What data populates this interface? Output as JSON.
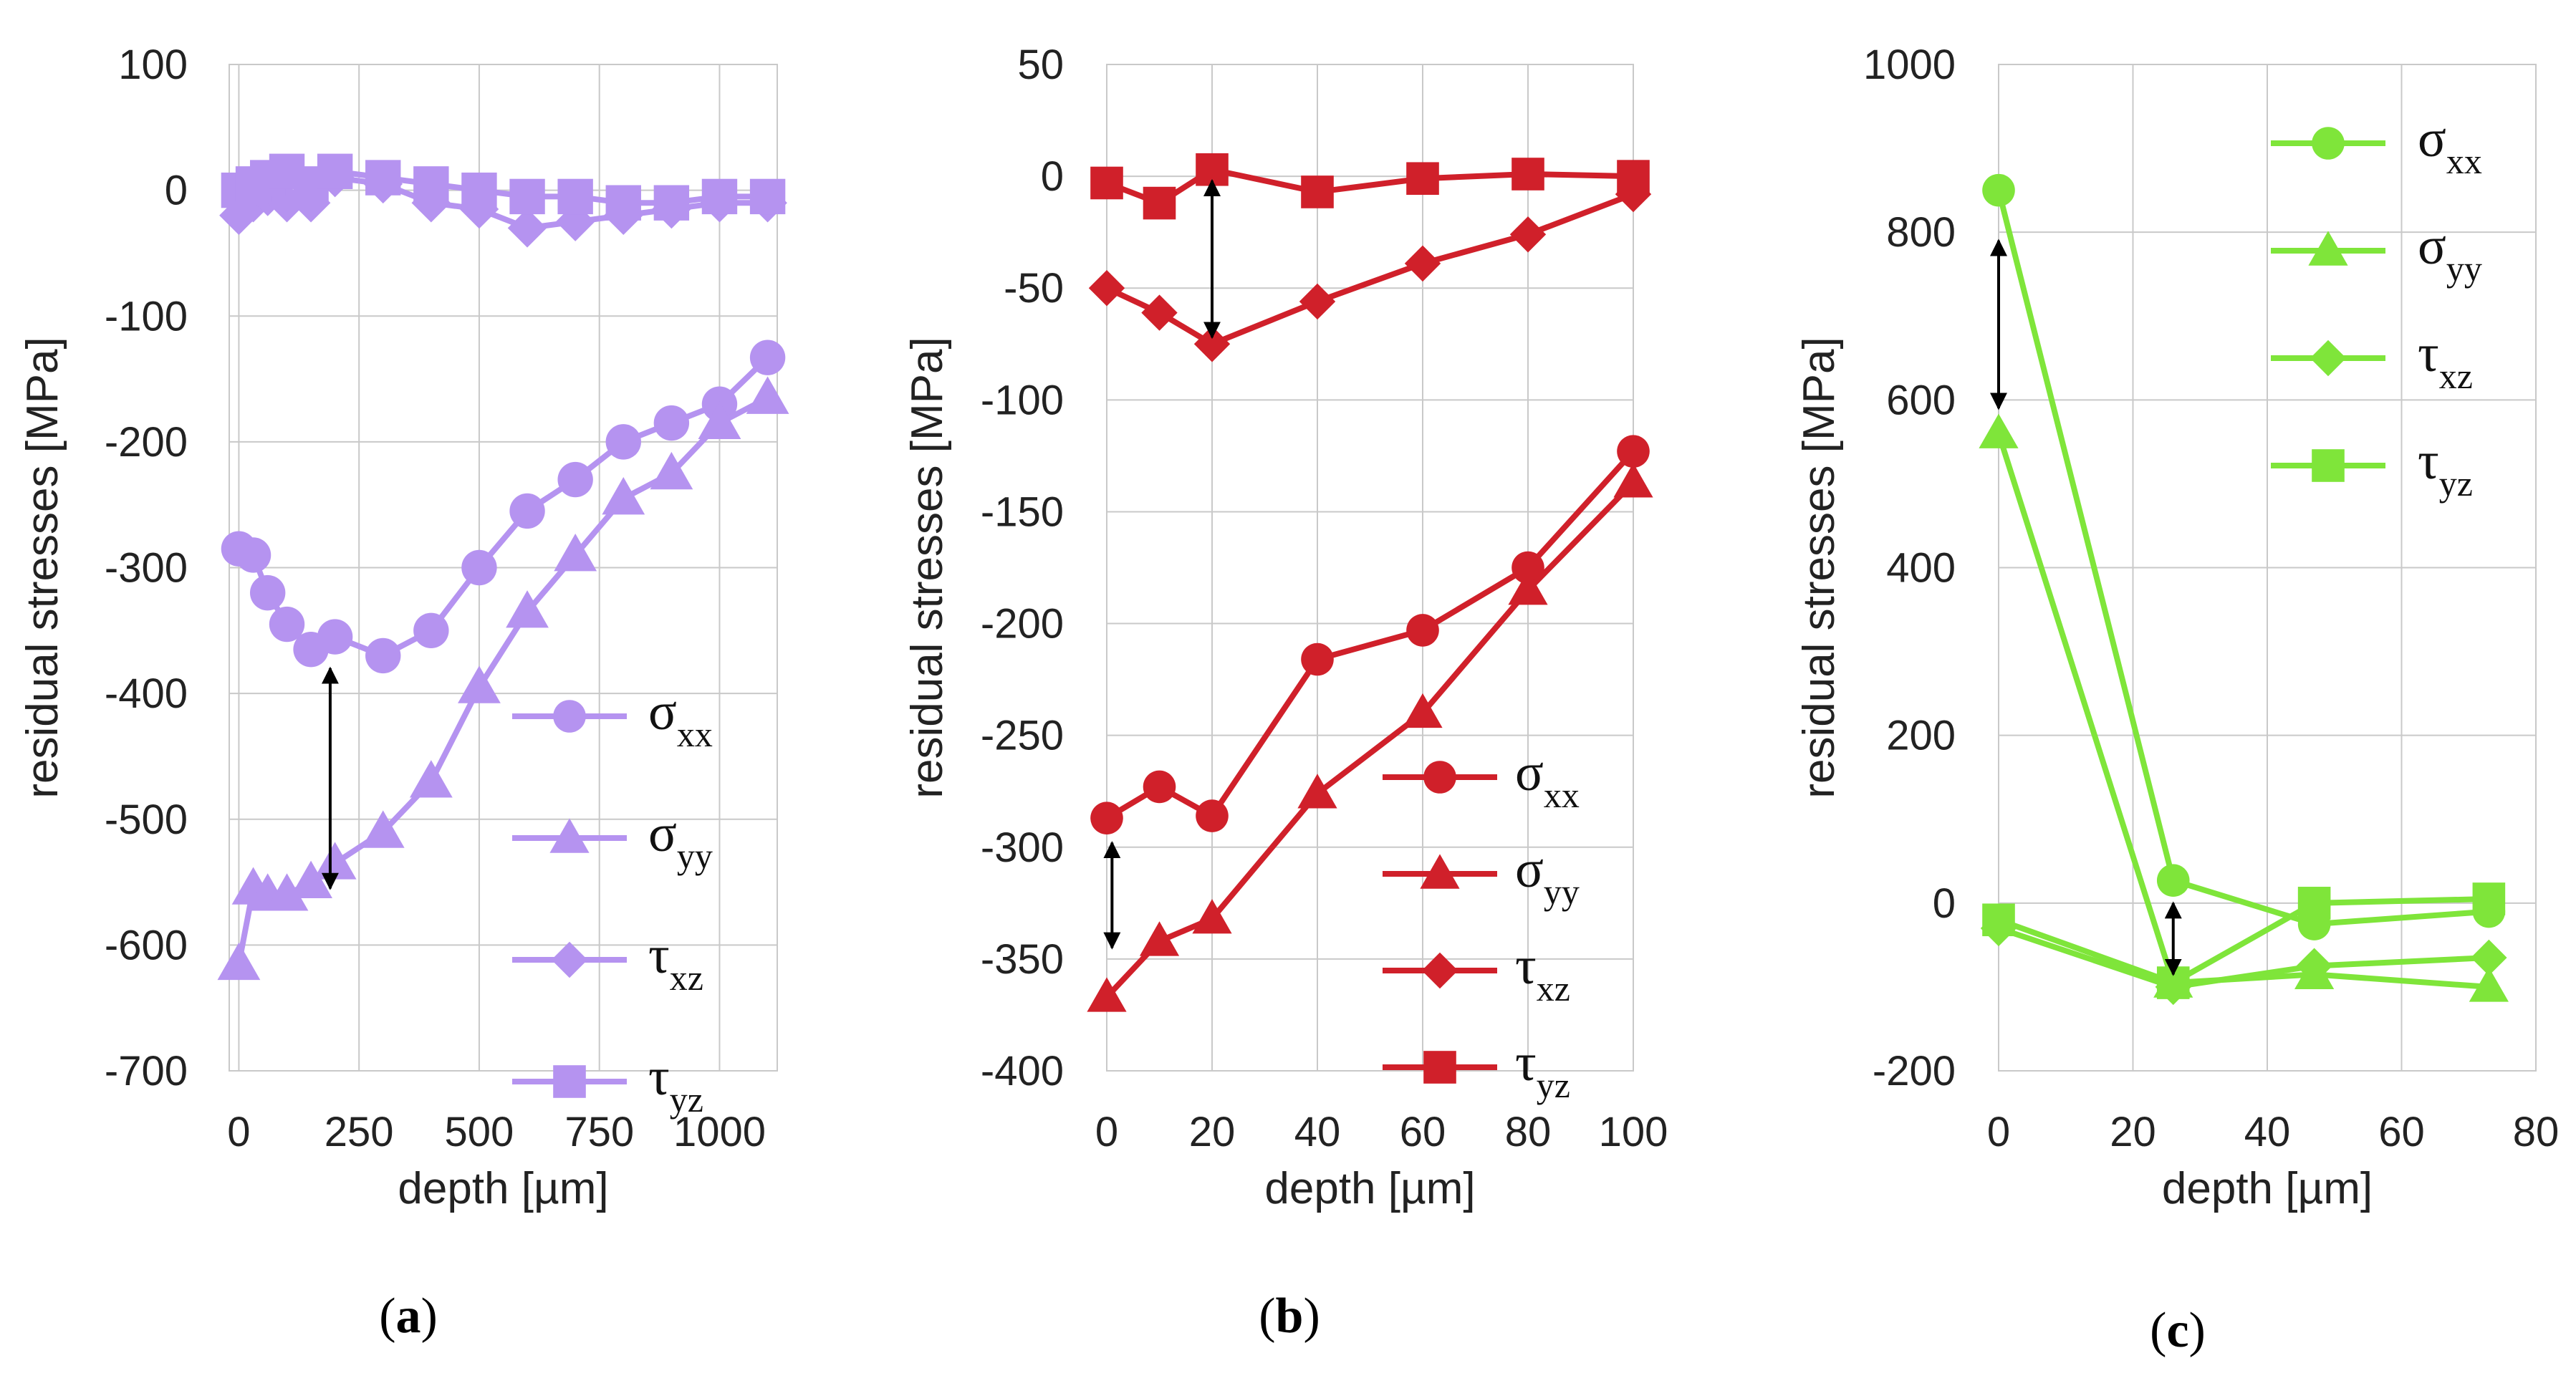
{
  "chart_data": [
    {
      "type": "line",
      "panel": "a",
      "caption_open": "(",
      "caption_letter": "a",
      "caption_close": ")",
      "color": "#B593F0",
      "xlabel": "depth [µm]",
      "ylabel": "residual stresses [MPa]",
      "xlim": [
        -20,
        1120
      ],
      "ylim": [
        -700,
        100
      ],
      "xticks": [
        0,
        250,
        500,
        750,
        1000
      ],
      "xtick_labels": [
        "0",
        "250",
        "500",
        "750",
        "1000"
      ],
      "yticks": [
        100,
        0,
        -100,
        -200,
        -300,
        -400,
        -500,
        -600,
        -700
      ],
      "ytick_labels": [
        "100",
        "0",
        "-100",
        "-200",
        "-300",
        "-400",
        "-500",
        "-600",
        "-700"
      ],
      "legend_position": "bottom-right",
      "arrow": {
        "x": 190,
        "y1": -380,
        "y2": -555
      },
      "series": [
        {
          "name": "σ",
          "sub": "xx",
          "marker": "circle",
          "x": [
            0,
            30,
            60,
            100,
            150,
            200,
            300,
            400,
            500,
            600,
            700,
            800,
            900,
            1000,
            1100
          ],
          "values": [
            -285,
            -290,
            -320,
            -345,
            -365,
            -355,
            -370,
            -350,
            -300,
            -255,
            -230,
            -200,
            -185,
            -170,
            -133
          ]
        },
        {
          "name": "σ",
          "sub": "yy",
          "marker": "triangle",
          "x": [
            0,
            30,
            60,
            100,
            150,
            200,
            300,
            400,
            500,
            600,
            700,
            800,
            900,
            1000,
            1100
          ],
          "values": [
            -615,
            -555,
            -560,
            -560,
            -550,
            -535,
            -510,
            -470,
            -395,
            -335,
            -290,
            -245,
            -225,
            -185,
            -165
          ]
        },
        {
          "name": "τ",
          "sub": "xz",
          "marker": "diamond",
          "x": [
            0,
            30,
            60,
            100,
            150,
            200,
            300,
            400,
            500,
            600,
            700,
            800,
            900,
            1000,
            1100
          ],
          "values": [
            -20,
            -10,
            -5,
            -10,
            -10,
            10,
            5,
            -10,
            -15,
            -30,
            -25,
            -20,
            -15,
            -10,
            -10
          ]
        },
        {
          "name": "τ",
          "sub": "yz",
          "marker": "square",
          "x": [
            0,
            30,
            60,
            100,
            150,
            200,
            300,
            400,
            500,
            600,
            700,
            800,
            900,
            1000,
            1100
          ],
          "values": [
            0,
            5,
            10,
            15,
            5,
            15,
            10,
            5,
            0,
            -5,
            -5,
            -10,
            -10,
            -5,
            -5
          ]
        }
      ]
    },
    {
      "type": "line",
      "panel": "b",
      "caption_open": "(",
      "caption_letter": "b",
      "caption_close": ")",
      "color": "#D0202A",
      "xlabel": "depth [µm]",
      "ylabel": "residual stresses [MPa]",
      "xlim": [
        0,
        100
      ],
      "ylim": [
        -400,
        50
      ],
      "xticks": [
        0,
        20,
        40,
        60,
        80,
        100
      ],
      "xtick_labels": [
        "0",
        "20",
        "40",
        "60",
        "80",
        "100"
      ],
      "yticks": [
        50,
        0,
        -50,
        -100,
        -150,
        -200,
        -250,
        -300,
        -350,
        -400
      ],
      "ytick_labels": [
        "50",
        "0",
        "-50",
        "-100",
        "-150",
        "-200",
        "-250",
        "-300",
        "-350",
        "-400"
      ],
      "legend_position": "bottom-right",
      "arrows": [
        {
          "x": 20,
          "y1": -2,
          "y2": -72
        },
        {
          "x": 1,
          "y1": -298,
          "y2": -345
        }
      ],
      "series": [
        {
          "name": "σ",
          "sub": "xx",
          "marker": "circle",
          "x": [
            0,
            10,
            20,
            40,
            60,
            80,
            100
          ],
          "values": [
            -287,
            -273,
            -286,
            -216,
            -203,
            -175,
            -123
          ]
        },
        {
          "name": "σ",
          "sub": "yy",
          "marker": "triangle",
          "x": [
            0,
            10,
            20,
            40,
            60,
            80,
            100
          ],
          "values": [
            -367,
            -342,
            -332,
            -276,
            -240,
            -185,
            -137
          ]
        },
        {
          "name": "τ",
          "sub": "xz",
          "marker": "diamond",
          "x": [
            0,
            10,
            20,
            40,
            60,
            80,
            100
          ],
          "values": [
            -50,
            -61,
            -75,
            -56,
            -39,
            -26,
            -8
          ]
        },
        {
          "name": "τ",
          "sub": "yz",
          "marker": "square",
          "x": [
            0,
            10,
            20,
            40,
            60,
            80,
            100
          ],
          "values": [
            -3,
            -12,
            3,
            -7,
            -1,
            1,
            0
          ]
        }
      ]
    },
    {
      "type": "line",
      "panel": "c",
      "caption_open": "(",
      "caption_letter": "c",
      "caption_close": ")",
      "color": "#7FE53A",
      "xlabel": "depth [µm]",
      "ylabel": "residual stresses [MPa]",
      "xlim": [
        0,
        80
      ],
      "ylim": [
        -200,
        1000
      ],
      "xticks": [
        0,
        20,
        40,
        60,
        80
      ],
      "xtick_labels": [
        "0",
        "20",
        "40",
        "60",
        "80"
      ],
      "yticks": [
        1000,
        800,
        600,
        400,
        200,
        0,
        -200
      ],
      "ytick_labels": [
        "1000",
        "800",
        "600",
        "400",
        "200",
        "0",
        "-200"
      ],
      "legend_position": "top-right",
      "arrows": [
        {
          "x": 0,
          "y1": 790,
          "y2": 590
        },
        {
          "x": 26,
          "y1": 0,
          "y2": -85
        }
      ],
      "series": [
        {
          "name": "σ",
          "sub": "xx",
          "marker": "circle",
          "x": [
            0,
            26,
            47,
            73
          ],
          "values": [
            850,
            27,
            -25,
            -10
          ]
        },
        {
          "name": "σ",
          "sub": "yy",
          "marker": "triangle",
          "x": [
            0,
            26,
            47,
            73
          ],
          "values": [
            560,
            -95,
            -85,
            -100
          ]
        },
        {
          "name": "τ",
          "sub": "xz",
          "marker": "diamond",
          "x": [
            0,
            26,
            47,
            73
          ],
          "values": [
            -30,
            -100,
            -75,
            -65
          ]
        },
        {
          "name": "τ",
          "sub": "yz",
          "marker": "square",
          "x": [
            0,
            26,
            47,
            73
          ],
          "values": [
            -20,
            -95,
            0,
            5
          ]
        }
      ]
    }
  ]
}
